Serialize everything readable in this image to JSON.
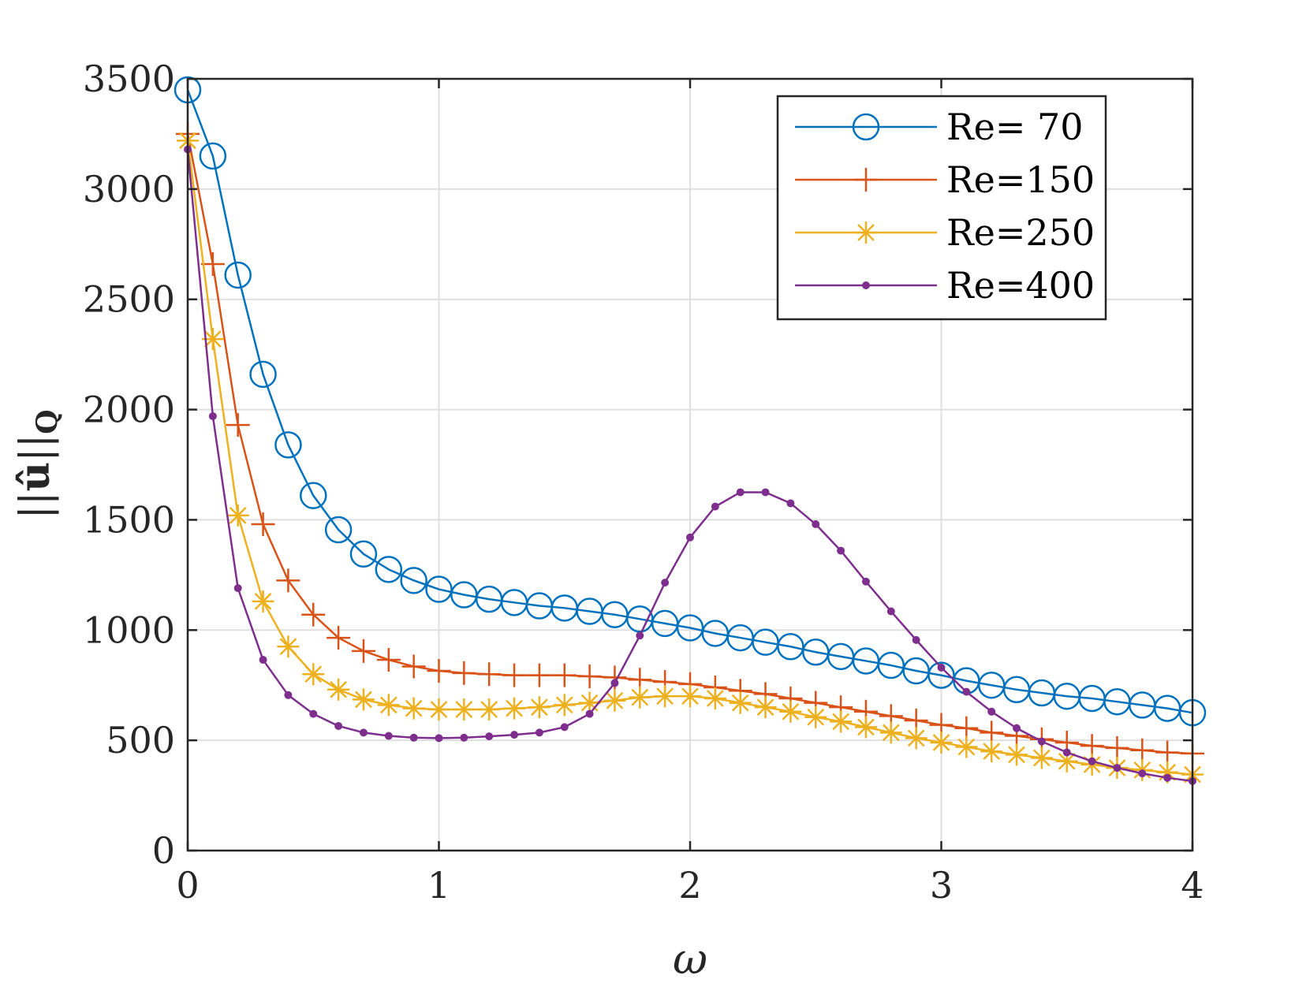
{
  "chart_data": {
    "type": "line",
    "title": "",
    "xlabel": "ω",
    "ylabel": "||û||Q",
    "ylabel_parts": {
      "bars_left": "||",
      "u": "û",
      "bars_right": "||",
      "sub": "Q"
    },
    "xlim": [
      0,
      4
    ],
    "ylim": [
      0,
      3500
    ],
    "xticks": [
      0,
      1,
      2,
      3,
      4
    ],
    "xtick_labels": [
      "0",
      "1",
      "2",
      "3",
      "4"
    ],
    "yticks": [
      0,
      500,
      1000,
      1500,
      2000,
      2500,
      3000,
      3500
    ],
    "ytick_labels": [
      "0",
      "500",
      "1000",
      "1500",
      "2000",
      "2500",
      "3000",
      "3500"
    ],
    "grid": true,
    "legend_position": "top-right",
    "x": [
      0,
      0.1,
      0.2,
      0.3,
      0.4,
      0.5,
      0.6,
      0.7,
      0.8,
      0.9,
      1.0,
      1.1,
      1.2,
      1.3,
      1.4,
      1.5,
      1.6,
      1.7,
      1.8,
      1.9,
      2.0,
      2.1,
      2.2,
      2.3,
      2.4,
      2.5,
      2.6,
      2.7,
      2.8,
      2.9,
      3.0,
      3.1,
      3.2,
      3.3,
      3.4,
      3.5,
      3.6,
      3.7,
      3.8,
      3.9,
      4.0
    ],
    "series": [
      {
        "name": "Re= 70",
        "color": "#0072BD",
        "marker": "circle",
        "values": [
          3450,
          3150,
          2610,
          2160,
          1840,
          1610,
          1455,
          1345,
          1275,
          1225,
          1185,
          1160,
          1140,
          1125,
          1110,
          1100,
          1085,
          1070,
          1050,
          1030,
          1010,
          985,
          965,
          945,
          925,
          900,
          880,
          860,
          840,
          815,
          795,
          770,
          750,
          730,
          715,
          700,
          690,
          675,
          660,
          645,
          625
        ]
      },
      {
        "name": "Re=150",
        "color": "#D95319",
        "marker": "plus",
        "values": [
          3250,
          2660,
          1930,
          1480,
          1225,
          1070,
          965,
          905,
          865,
          835,
          815,
          805,
          800,
          795,
          795,
          795,
          790,
          785,
          775,
          765,
          755,
          740,
          725,
          710,
          690,
          670,
          650,
          630,
          610,
          590,
          570,
          555,
          535,
          520,
          505,
          490,
          475,
          465,
          455,
          445,
          440
        ]
      },
      {
        "name": "Re=250",
        "color": "#EDB120",
        "marker": "asterisk",
        "values": [
          3220,
          2320,
          1520,
          1130,
          925,
          800,
          730,
          685,
          660,
          645,
          640,
          640,
          640,
          645,
          650,
          660,
          670,
          680,
          695,
          700,
          700,
          690,
          670,
          650,
          630,
          605,
          585,
          560,
          535,
          510,
          490,
          470,
          450,
          435,
          420,
          405,
          390,
          375,
          365,
          355,
          345
        ]
      },
      {
        "name": "Re=400",
        "color": "#7E2F8E",
        "marker": "dot",
        "values": [
          3180,
          1970,
          1190,
          865,
          705,
          620,
          565,
          535,
          520,
          512,
          510,
          512,
          518,
          525,
          535,
          560,
          620,
          760,
          975,
          1215,
          1420,
          1560,
          1625,
          1625,
          1575,
          1480,
          1360,
          1220,
          1085,
          955,
          830,
          720,
          630,
          555,
          495,
          445,
          405,
          375,
          350,
          330,
          315
        ]
      }
    ]
  }
}
